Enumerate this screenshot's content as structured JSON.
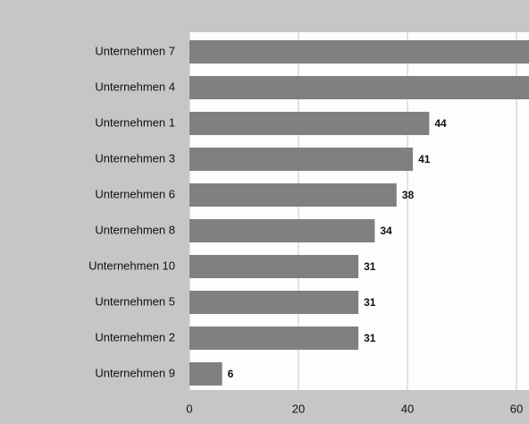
{
  "chart_data": {
    "type": "hbar",
    "categories": [
      "Unternehmen 7",
      "Unternehmen 4",
      "Unternehmen 1",
      "Unternehmen 3",
      "Unternehmen 6",
      "Unternehmen 8",
      "Unternehmen 10",
      "Unternehmen 5",
      "Unternehmen 2",
      "Unternehmen 9"
    ],
    "values": [
      68,
      65,
      44,
      41,
      38,
      34,
      31,
      31,
      31,
      6
    ],
    "color": "#808080",
    "xlim": [
      0,
      62.3
    ],
    "xticks": [
      0,
      20,
      40,
      60
    ],
    "grid": true
  }
}
